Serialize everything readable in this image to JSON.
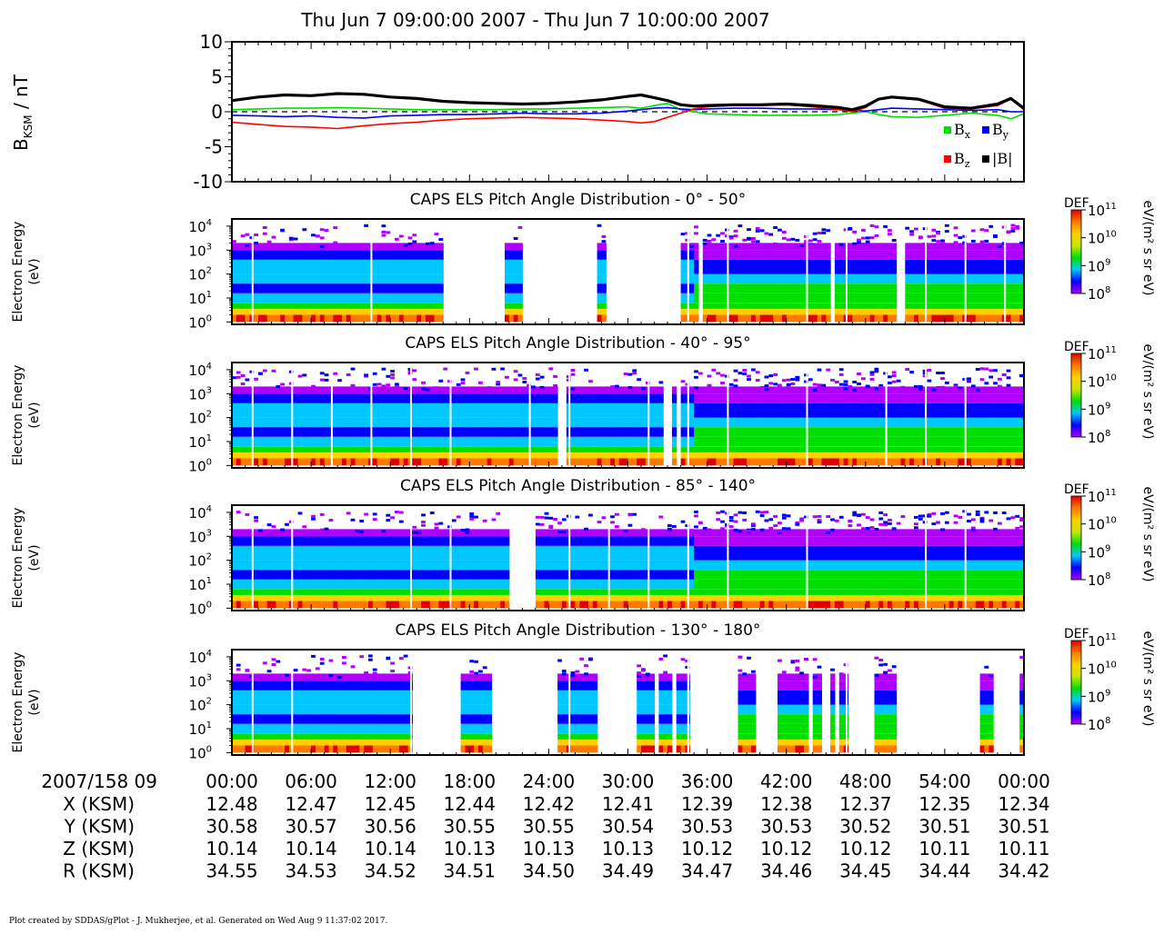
{
  "main_title": "Thu Jun 7 09:00:00 2007 - Thu Jun 7 10:00:00 2007",
  "footer": "Plot created by SDDAS/gPlot - J. Mukherjee, et al.  Generated on Wed Aug 9 11:37:02 2017.",
  "colors": {
    "bx": "#00e000",
    "by": "#0000ff",
    "bz": "#ff0000",
    "btot": "#000000",
    "spectrogram_colormap": [
      "#b000ff",
      "#0000ff",
      "#00c8ff",
      "#00e000",
      "#c8e600",
      "#ffd000",
      "#ff7800",
      "#e00000"
    ]
  },
  "chart_data": [
    {
      "type": "line",
      "ylabel_main": "B",
      "ylabel_sub": "KSM",
      "ylabel_unit": " / nT",
      "ylim": [
        -10,
        10
      ],
      "yticks": [
        "10",
        "5",
        "0",
        "-5",
        "-10"
      ],
      "ytick_values": [
        10,
        5,
        0,
        -5,
        -10
      ],
      "xlim_minutes": [
        0,
        60
      ],
      "zero_line": "dashed",
      "legend_placement": "lower-right",
      "legend": [
        {
          "key": "bx",
          "label": "B",
          "sub": "x"
        },
        {
          "key": "by",
          "label": "B",
          "sub": "y"
        },
        {
          "key": "bz",
          "label": "B",
          "sub": "z"
        },
        {
          "key": "btot",
          "label": "|B|",
          "sub": ""
        }
      ],
      "series": [
        {
          "key": "bx",
          "x": [
            0,
            2,
            4,
            6,
            8,
            10,
            12,
            14,
            16,
            18,
            20,
            22,
            24,
            26,
            28,
            30,
            31,
            32,
            33,
            34,
            35,
            36,
            38,
            40,
            42,
            44,
            46,
            47,
            48,
            49,
            50,
            52,
            54,
            56,
            58,
            59,
            60
          ],
          "y": [
            0.3,
            0.4,
            0.5,
            0.5,
            0.6,
            0.5,
            0.4,
            0.3,
            0.3,
            0.3,
            0.3,
            0.4,
            0.4,
            0.5,
            0.6,
            0.7,
            0.5,
            0.9,
            1.2,
            0.3,
            0.0,
            -0.3,
            -0.4,
            -0.5,
            -0.5,
            -0.5,
            -0.4,
            -0.2,
            0.0,
            -0.4,
            -0.7,
            -0.8,
            -0.5,
            -0.2,
            -0.5,
            -1.0,
            -0.3
          ]
        },
        {
          "key": "by",
          "x": [
            0,
            2,
            4,
            6,
            8,
            10,
            12,
            14,
            16,
            18,
            20,
            22,
            24,
            26,
            28,
            30,
            31,
            32,
            33,
            34,
            35,
            36,
            38,
            40,
            42,
            44,
            46,
            47,
            48,
            49,
            50,
            52,
            54,
            56,
            58,
            59,
            60
          ],
          "y": [
            -0.5,
            -0.6,
            -0.7,
            -0.6,
            -0.8,
            -0.9,
            -0.6,
            -0.5,
            -0.4,
            -0.4,
            -0.3,
            -0.2,
            -0.3,
            -0.3,
            -0.2,
            0.1,
            0.3,
            0.5,
            0.6,
            0.4,
            0.3,
            0.4,
            0.5,
            0.5,
            0.4,
            0.4,
            0.3,
            0.2,
            0.1,
            0.3,
            0.5,
            0.4,
            0.3,
            0.2,
            0.3,
            0.0,
            0.0
          ]
        },
        {
          "key": "bz",
          "x": [
            0,
            2,
            4,
            6,
            8,
            10,
            12,
            14,
            16,
            18,
            20,
            22,
            24,
            26,
            28,
            30,
            31,
            32,
            33,
            34,
            35,
            36,
            38,
            40,
            42,
            44,
            46,
            47,
            48,
            49,
            50,
            52,
            54,
            56,
            58,
            59,
            60
          ],
          "y": [
            -1.5,
            -1.8,
            -2.1,
            -2.2,
            -2.4,
            -2.0,
            -1.7,
            -1.5,
            -1.2,
            -1.0,
            -0.9,
            -0.8,
            -0.9,
            -1.0,
            -1.2,
            -1.4,
            -1.6,
            -1.4,
            -0.8,
            -0.2,
            0.4,
            0.7,
            0.9,
            0.9,
            1.0,
            0.7,
            0.3,
            0.0,
            0.6,
            1.8,
            2.0,
            1.7,
            0.5,
            0.4,
            0.9,
            1.8,
            0.3
          ]
        },
        {
          "key": "btot",
          "x": [
            0,
            2,
            4,
            6,
            8,
            10,
            12,
            14,
            16,
            18,
            20,
            22,
            24,
            26,
            28,
            30,
            31,
            32,
            33,
            34,
            35,
            36,
            38,
            40,
            42,
            44,
            46,
            47,
            48,
            49,
            50,
            52,
            54,
            56,
            58,
            59,
            60
          ],
          "y": [
            1.6,
            2.1,
            2.4,
            2.3,
            2.6,
            2.5,
            2.1,
            1.9,
            1.5,
            1.3,
            1.2,
            1.1,
            1.2,
            1.4,
            1.7,
            2.2,
            2.4,
            2.0,
            1.6,
            1.0,
            0.8,
            0.9,
            1.0,
            1.0,
            1.1,
            0.9,
            0.6,
            0.3,
            0.8,
            1.8,
            2.1,
            1.8,
            0.7,
            0.5,
            1.1,
            1.9,
            0.5
          ]
        }
      ]
    },
    {
      "type": "heatmap",
      "title": "CAPS ELS Pitch Angle Distribution - 0° - 50°",
      "ylabel": "Electron Energy",
      "yunit": "(eV)",
      "ylim_log10": [
        -0.1,
        4.3
      ],
      "yticks": [
        "0",
        "1",
        "2",
        "3",
        "4"
      ],
      "colorbar_title": "DEF",
      "colorbar_unit": "eV/(m² s sr eV)",
      "colorbar_ticks": [
        "11",
        "10",
        "9",
        "8"
      ],
      "data_gaps_minutes": [
        [
          16.0,
          20.5
        ],
        [
          22.0,
          27.5
        ],
        [
          28.5,
          34.0
        ],
        [
          35.2,
          35.8
        ],
        [
          45.2,
          45.7
        ],
        [
          50.5,
          51.0
        ]
      ]
    },
    {
      "type": "heatmap",
      "title": "CAPS ELS Pitch Angle Distribution - 40° - 95°",
      "ylabel": "Electron Energy",
      "yunit": "(eV)",
      "ylim_log10": [
        -0.1,
        4.3
      ],
      "yticks": [
        "0",
        "1",
        "2",
        "3",
        "4"
      ],
      "colorbar_title": "DEF",
      "colorbar_unit": "eV/(m² s sr eV)",
      "colorbar_ticks": [
        "11",
        "10",
        "9",
        "8"
      ],
      "data_gaps_minutes": [
        [
          24.6,
          25.3
        ],
        [
          32.8,
          33.2
        ],
        [
          33.6,
          34.0
        ]
      ]
    },
    {
      "type": "heatmap",
      "title": "CAPS ELS Pitch Angle Distribution - 85° - 140°",
      "ylabel": "Electron Energy",
      "yunit": "(eV)",
      "ylim_log10": [
        -0.1,
        4.3
      ],
      "yticks": [
        "0",
        "1",
        "2",
        "3",
        "4"
      ],
      "colorbar_title": "DEF",
      "colorbar_unit": "eV/(m² s sr eV)",
      "colorbar_ticks": [
        "11",
        "10",
        "9",
        "8"
      ],
      "data_gaps_minutes": [
        [
          21.0,
          23.0
        ]
      ]
    },
    {
      "type": "heatmap",
      "title": "CAPS ELS Pitch Angle Distribution - 130° - 180°",
      "ylabel": "Electron Energy",
      "yunit": "(eV)",
      "ylim_log10": [
        -0.1,
        4.3
      ],
      "yticks": [
        "0",
        "1",
        "2",
        "3",
        "4"
      ],
      "colorbar_title": "DEF",
      "colorbar_unit": "eV/(m² s sr eV)",
      "colorbar_ticks": [
        "11",
        "10",
        "9",
        "8"
      ],
      "data_gaps_minutes": [
        [
          13.7,
          17.2
        ],
        [
          19.6,
          24.8
        ],
        [
          27.6,
          30.8
        ],
        [
          32.0,
          32.4
        ],
        [
          33.4,
          33.8
        ],
        [
          34.6,
          38.2
        ],
        [
          39.8,
          41.2
        ],
        [
          43.6,
          44.0
        ],
        [
          44.8,
          45.2
        ],
        [
          45.6,
          45.9
        ],
        [
          46.6,
          48.5
        ],
        [
          50.3,
          56.8
        ],
        [
          57.8,
          59.7
        ]
      ]
    }
  ],
  "time_axis": {
    "date_label": "2007/158 09",
    "ticks": [
      "00:00",
      "06:00",
      "12:00",
      "18:00",
      "24:00",
      "30:00",
      "36:00",
      "42:00",
      "48:00",
      "54:00",
      "00:00"
    ],
    "tick_minutes": [
      0,
      6,
      12,
      18,
      24,
      30,
      36,
      42,
      48,
      54,
      60
    ]
  },
  "ephemeris": [
    {
      "label": "X (KSM)",
      "values": [
        "12.48",
        "12.47",
        "12.45",
        "12.44",
        "12.42",
        "12.41",
        "12.39",
        "12.38",
        "12.37",
        "12.35",
        "12.34"
      ]
    },
    {
      "label": "Y (KSM)",
      "values": [
        "30.58",
        "30.57",
        "30.56",
        "30.55",
        "30.55",
        "30.54",
        "30.53",
        "30.53",
        "30.52",
        "30.51",
        "30.51"
      ]
    },
    {
      "label": "Z (KSM)",
      "values": [
        "10.14",
        "10.14",
        "10.14",
        "10.13",
        "10.13",
        "10.13",
        "10.12",
        "10.12",
        "10.12",
        "10.11",
        "10.11"
      ]
    },
    {
      "label": "R (KSM)",
      "values": [
        "34.55",
        "34.53",
        "34.52",
        "34.51",
        "34.50",
        "34.49",
        "34.47",
        "34.46",
        "34.45",
        "34.44",
        "34.42"
      ]
    }
  ]
}
